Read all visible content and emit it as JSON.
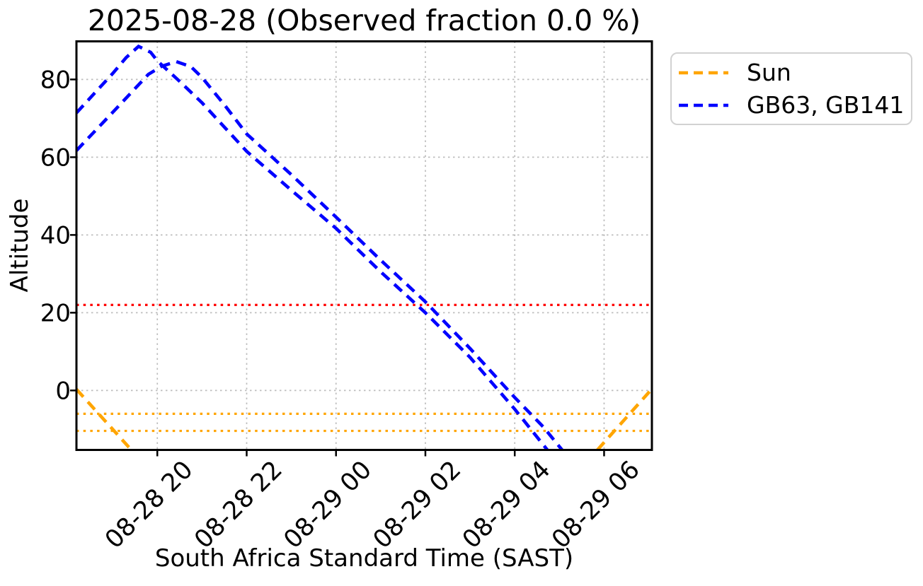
{
  "meta": {
    "date": "2025-08-28",
    "observed_fraction_label": "Observed fraction 0.0 %"
  },
  "chart_data": {
    "type": "line",
    "title": "2025-08-28 (Observed fraction 0.0 %)",
    "xlabel": "South Africa Standard Time (SAST)",
    "ylabel": "Altitude",
    "x_unit": "hours since 2025-08-28 00:00 SAST (values > 24 are past midnight)",
    "xlim": [
      18.19,
      31.07
    ],
    "ylim": [
      -15.3,
      89.8
    ],
    "grid": true,
    "x_ticks": [
      {
        "value": 20,
        "label": "08-28 20"
      },
      {
        "value": 22,
        "label": "08-28 22"
      },
      {
        "value": 24,
        "label": "08-29 00"
      },
      {
        "value": 26,
        "label": "08-29 02"
      },
      {
        "value": 28,
        "label": "08-29 04"
      },
      {
        "value": 30,
        "label": "08-29 06"
      }
    ],
    "y_ticks": [
      0,
      20,
      40,
      60,
      80
    ],
    "colors": {
      "sun": "#FFA500",
      "targets": "#0000FF",
      "altitude_limit": "#FF0000",
      "grid": "#bdbdbd",
      "axes": "#000000"
    },
    "legend": {
      "position": "outside-upper-right",
      "entries": [
        {
          "label": "Sun",
          "color": "#FFA500",
          "style": "dashed"
        },
        {
          "label": "GB63, GB141",
          "color": "#0000FF",
          "style": "dashed"
        }
      ]
    },
    "ref_lines": [
      {
        "y": 22,
        "color": "#FF0000",
        "style": "dotted",
        "name": "altitude-limit-line"
      },
      {
        "y": -6,
        "color": "#FFA500",
        "style": "dotted",
        "name": "sun-altitude-threshold-upper"
      },
      {
        "y": -10.4,
        "color": "#FFA500",
        "style": "dotted",
        "name": "sun-altitude-threshold-lower"
      }
    ],
    "series": [
      {
        "name": "Sun",
        "color": "#FFA500",
        "style": "dashed",
        "segments": [
          [
            [
              18.19,
              0.3
            ],
            [
              19.42,
              -15.3
            ]
          ],
          [
            [
              29.85,
              -15.3
            ],
            [
              31.07,
              0.4
            ]
          ]
        ]
      },
      {
        "name": "target-1 (GB63, GB141 pair)",
        "color": "#0000FF",
        "style": "dashed",
        "segments": [
          [
            [
              18.19,
              71.4
            ],
            [
              19.0,
              81.5
            ],
            [
              19.3,
              85.6
            ],
            [
              19.58,
              88.5
            ],
            [
              19.85,
              87.0
            ],
            [
              20.0,
              84.8
            ],
            [
              20.5,
              79.5
            ],
            [
              21.0,
              74.0
            ],
            [
              22.0,
              61.5
            ],
            [
              23.0,
              51.5
            ],
            [
              24.0,
              41.7
            ],
            [
              25.0,
              30.5
            ],
            [
              26.0,
              20.0
            ],
            [
              27.0,
              8.5
            ],
            [
              28.0,
              -4.8
            ],
            [
              28.73,
              -15.3
            ]
          ]
        ]
      },
      {
        "name": "target-2 (GB63, GB141 pair)",
        "color": "#0000FF",
        "style": "dashed",
        "segments": [
          [
            [
              18.19,
              61.7
            ],
            [
              19.0,
              71.5
            ],
            [
              19.8,
              81.3
            ],
            [
              20.1,
              83.4
            ],
            [
              20.42,
              84.6
            ],
            [
              20.75,
              83.3
            ],
            [
              21.0,
              80.5
            ],
            [
              21.5,
              73.5
            ],
            [
              22.0,
              66.0
            ],
            [
              23.0,
              55.5
            ],
            [
              24.0,
              44.6
            ],
            [
              25.0,
              33.5
            ],
            [
              26.0,
              22.8
            ],
            [
              27.0,
              10.8
            ],
            [
              28.0,
              -1.8
            ],
            [
              28.65,
              -9.5
            ],
            [
              29.06,
              -15.3
            ]
          ]
        ]
      }
    ]
  }
}
